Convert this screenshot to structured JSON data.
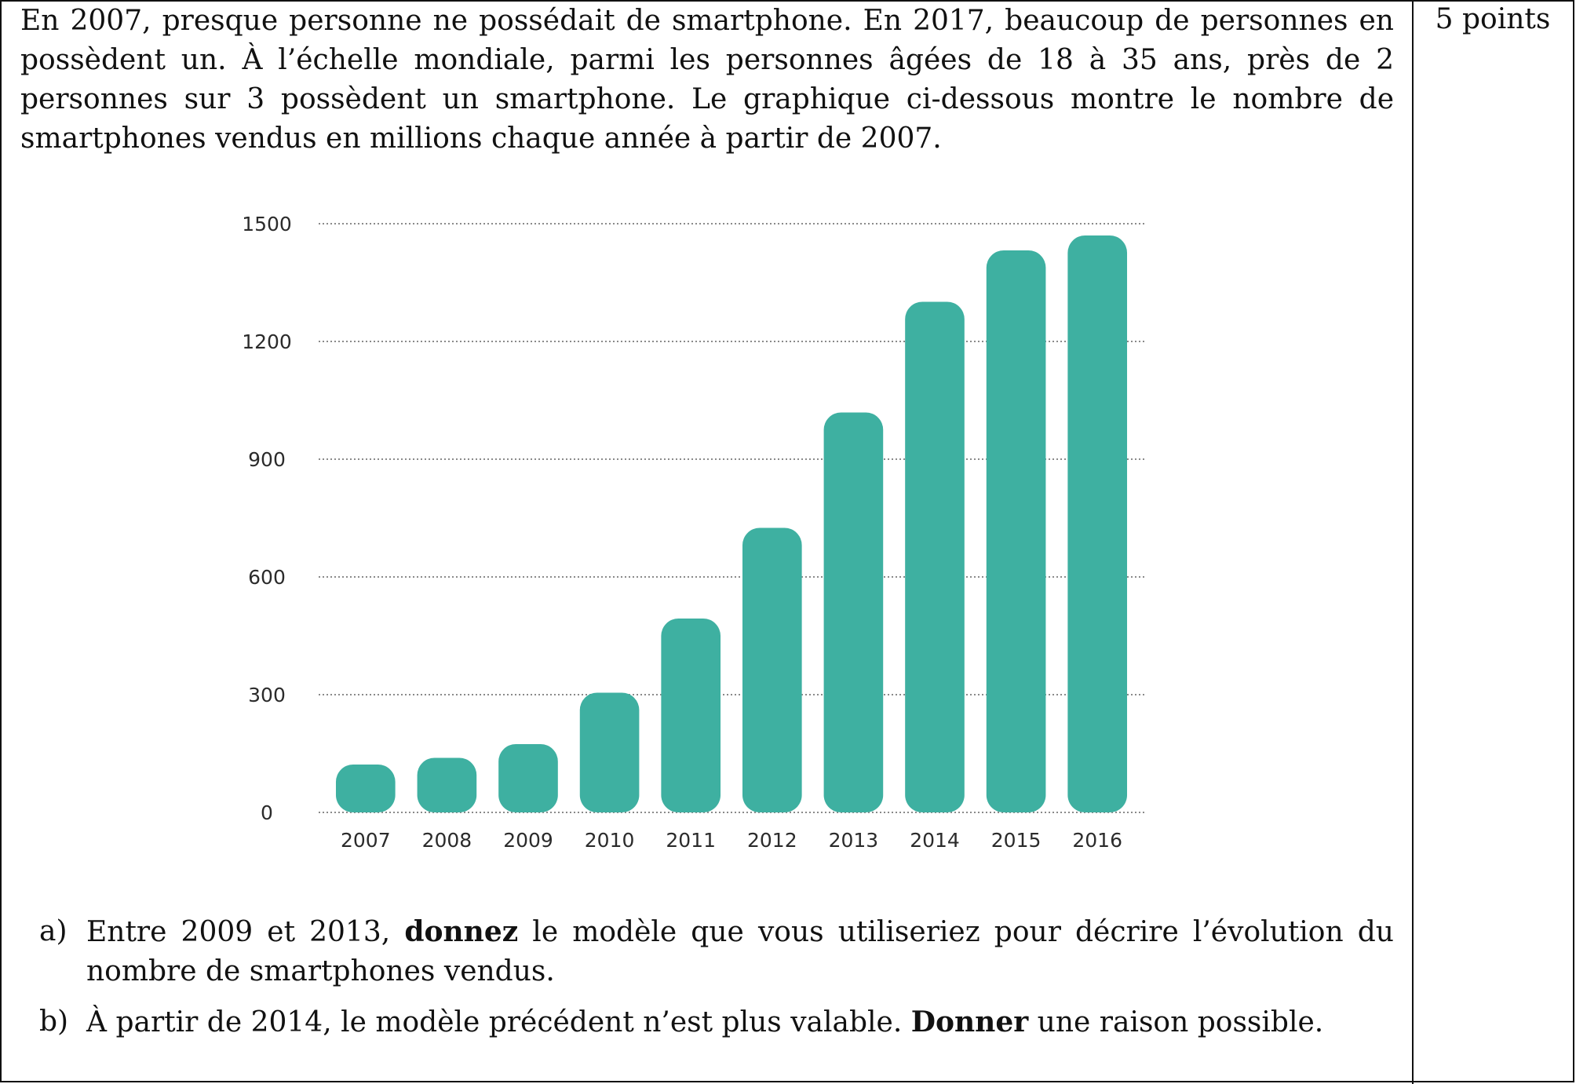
{
  "points_label": "5 points",
  "intro_text": "En 2007, presque personne ne possédait de smartphone. En 2017, beaucoup de personnes en possèdent un. À l’échelle mondiale, parmi les personnes âgées de 18 à 35 ans, près de 2 personnes sur 3 possèdent un smartphone. Le graphique ci-dessous montre le nombre de smartphones vendus en millions chaque année à partir de 2007.",
  "questions": [
    {
      "letter": "a)",
      "before": "Entre 2009 et 2013, ",
      "bold": "donnez",
      "after": " le modèle que vous utiliseriez pour décrire l’évolution du nombre de smartphones vendus."
    },
    {
      "letter": "b)",
      "before": "À partir de 2014, le modèle précédent n’est plus valable. ",
      "bold": "Donner",
      "after": " une raison possible."
    }
  ],
  "chart_data": {
    "type": "bar",
    "categories": [
      "2007",
      "2008",
      "2009",
      "2010",
      "2011",
      "2012",
      "2013",
      "2014",
      "2015",
      "2016"
    ],
    "values": [
      122,
      139,
      174,
      305,
      494,
      725,
      1019,
      1301,
      1432,
      1470
    ],
    "ylim": [
      0,
      1500
    ],
    "yticks": [
      0,
      300,
      600,
      900,
      1200,
      1500
    ],
    "grid": true,
    "bar_color": "#3eb0a1",
    "grid_color": "#8a8a8a",
    "title": "",
    "xlabel": "",
    "ylabel": ""
  }
}
